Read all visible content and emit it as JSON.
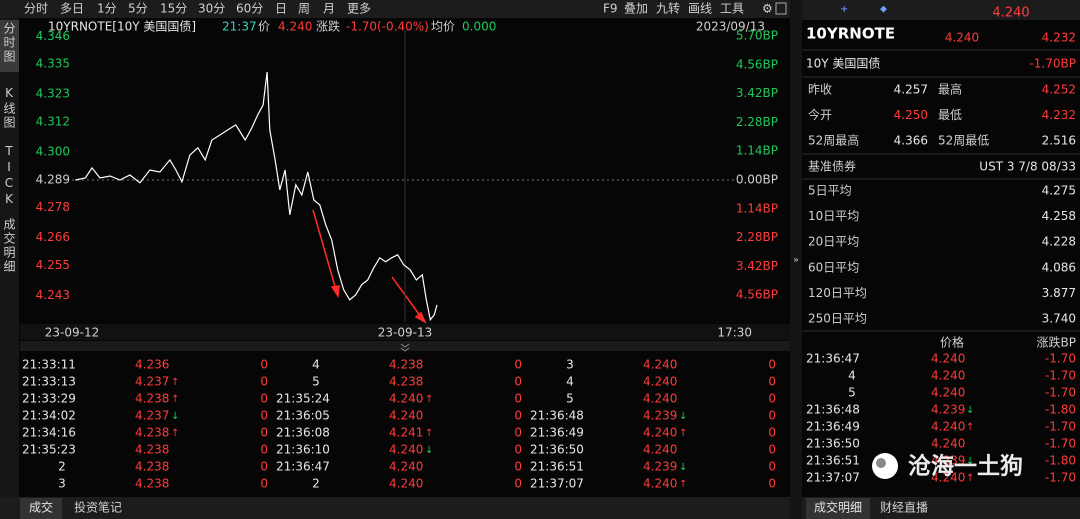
{
  "toolbar": {
    "tabs": [
      "分时",
      "多日",
      "1分",
      "5分",
      "15分",
      "30分",
      "60分",
      "日",
      "周",
      "月",
      "更多"
    ],
    "tools": [
      "F9",
      "叠加",
      "九转",
      "画线",
      "工具"
    ]
  },
  "side_tabs": [
    "分时图",
    "K线图",
    "TICK",
    "成交明细"
  ],
  "chart_header": {
    "symbol": "10YRNOTE[10Y 美国国债]",
    "time": "21:37",
    "price_label": "价",
    "price": "4.240",
    "change_label": "涨跌",
    "change": "-1.70(-0.40%)",
    "avg_label": "均价",
    "avg": "0.000",
    "date": "2023/09/13"
  },
  "chart_data": {
    "type": "line",
    "color": "#ffffff",
    "x": [
      0.5,
      2.0,
      3.0,
      4.2,
      5.7,
      7.2,
      8.7,
      10.2,
      11.7,
      13.2,
      14.7,
      15.6,
      16.5,
      17.7,
      18.9,
      20.0,
      21.0,
      22.2,
      23.4,
      24.6,
      26.0,
      27.0,
      27.9,
      28.7,
      29.3,
      29.7,
      30.5,
      31.2,
      32.0,
      32.7,
      33.6,
      34.5,
      35.4,
      36.3,
      37.2,
      38.1,
      39.0,
      39.9,
      40.8,
      41.7,
      42.6,
      43.5,
      44.4,
      45.3,
      46.2,
      47.1,
      48.0,
      48.9,
      49.8,
      50.8,
      51.7,
      52.6,
      53.2,
      53.8,
      54.4,
      54.8
    ],
    "values": [
      4.2889,
      4.2897,
      4.2937,
      4.2897,
      4.2905,
      4.2889,
      4.2909,
      4.2878,
      4.2929,
      4.2921,
      4.2969,
      4.2929,
      4.2882,
      4.2989,
      4.3017,
      4.2969,
      4.3048,
      4.3068,
      4.3088,
      4.3108,
      4.3048,
      4.3096,
      4.3148,
      4.3187,
      4.3318,
      4.3088,
      4.2969,
      4.285,
      4.2929,
      4.2751,
      4.287,
      4.283,
      4.2921,
      4.281,
      4.279,
      4.2711,
      4.2651,
      4.2532,
      4.2453,
      4.2413,
      4.2433,
      4.2473,
      4.2492,
      4.254,
      4.258,
      4.2564,
      4.258,
      4.2592,
      4.2552,
      4.2532,
      4.2492,
      4.2512,
      4.2413,
      4.2334,
      4.2354,
      4.2393
    ],
    "xlim": [
      0,
      100
    ],
    "xticks": [
      {
        "value": 0,
        "label": "23-09-12"
      },
      {
        "value": 50,
        "label": "23-09-13"
      },
      {
        "value": 100,
        "label": "17:30"
      }
    ],
    "ylim": [
      4.2325,
      4.3485
    ],
    "yticks": [
      {
        "value": 4.346,
        "label": "4.346"
      },
      {
        "value": 4.335,
        "label": "4.335"
      },
      {
        "value": 4.323,
        "label": "4.323"
      },
      {
        "value": 4.312,
        "label": "4.312"
      },
      {
        "value": 4.3,
        "label": "4.300"
      },
      {
        "value": 4.289,
        "label": "4.289"
      },
      {
        "value": 4.278,
        "label": "4.278"
      },
      {
        "value": 4.266,
        "label": "4.266"
      },
      {
        "value": 4.255,
        "label": "4.255"
      },
      {
        "value": 4.243,
        "label": "4.243"
      }
    ],
    "y2lim": [
      -5.62,
      5.94
    ],
    "y2ticks": [
      {
        "value": 5.7,
        "label": "5.70BP"
      },
      {
        "value": 4.56,
        "label": "4.56BP"
      },
      {
        "value": 3.42,
        "label": "3.42BP"
      },
      {
        "value": 2.28,
        "label": "2.28BP"
      },
      {
        "value": 1.14,
        "label": "1.14BP"
      },
      {
        "value": 0,
        "label": "0.00BP"
      },
      {
        "value": -1.14,
        "label": "1.14BP"
      },
      {
        "value": -2.28,
        "label": "2.28BP"
      },
      {
        "value": -3.42,
        "label": "3.42BP"
      },
      {
        "value": -4.56,
        "label": "4.56BP"
      }
    ]
  },
  "trades": {
    "flag_colors": {
      "↑": "#ff3b3b",
      "↓": "#1ec85a"
    },
    "groups": [
      [
        {
          "time": "21:33:11",
          "price": "4.236",
          "vol": "0"
        },
        {
          "time": "21:33:13",
          "price": "4.237",
          "flag": "↑",
          "vol": "0"
        },
        {
          "time": "21:33:29",
          "price": "4.238",
          "flag": "↑",
          "vol": "0"
        },
        {
          "time": "21:34:02",
          "price": "4.237",
          "flag": "↓",
          "vol": "0"
        },
        {
          "time": "21:34:16",
          "price": "4.238",
          "flag": "↑",
          "vol": "0"
        },
        {
          "time": "21:35:23",
          "price": "4.238",
          "vol": "0"
        },
        {
          "time": "2",
          "price": "4.238",
          "vol": "0"
        },
        {
          "time": "3",
          "price": "4.238",
          "vol": "0"
        }
      ],
      [
        {
          "time": "4",
          "price": "4.238",
          "vol": "0"
        },
        {
          "time": "5",
          "price": "4.238",
          "vol": "0"
        },
        {
          "time": "21:35:24",
          "price": "4.240",
          "flag": "↑",
          "vol": "0"
        },
        {
          "time": "21:36:05",
          "price": "4.240",
          "vol": "0"
        },
        {
          "time": "21:36:08",
          "price": "4.241",
          "flag": "↑",
          "vol": "0"
        },
        {
          "time": "21:36:10",
          "price": "4.240",
          "flag": "↓",
          "vol": "0"
        },
        {
          "time": "21:36:47",
          "price": "4.240",
          "vol": "0"
        },
        {
          "time": "2",
          "price": "4.240",
          "vol": "0"
        }
      ],
      [
        {
          "time": "3",
          "price": "4.240",
          "vol": "0"
        },
        {
          "time": "4",
          "price": "4.240",
          "vol": "0"
        },
        {
          "time": "5",
          "price": "4.240",
          "vol": "0"
        },
        {
          "time": "21:36:48",
          "price": "4.239",
          "flag": "↓",
          "vol": "0"
        },
        {
          "time": "21:36:49",
          "price": "4.240",
          "flag": "↑",
          "vol": "0"
        },
        {
          "time": "21:36:50",
          "price": "4.240",
          "vol": "0"
        },
        {
          "time": "21:36:51",
          "price": "4.239",
          "flag": "↓",
          "vol": "0"
        },
        {
          "time": "21:37:07",
          "price": "4.240",
          "flag": "↑",
          "vol": "0"
        }
      ]
    ]
  },
  "bottom_tabs": [
    "成交",
    "投资笔记"
  ],
  "panel": {
    "last": "4.240",
    "code": "10YRNOTE",
    "bid": "4.240",
    "ask": "4.232",
    "name": "10Y 美国国债",
    "change": "-1.70BP",
    "quote": [
      [
        {
          "label": "昨收",
          "value": "4.257",
          "color": "#e6e6e6"
        },
        {
          "label": "最高",
          "value": "4.252",
          "color": "#ff3b3b"
        }
      ],
      [
        {
          "label": "今开",
          "value": "4.250",
          "color": "#ff3b3b"
        },
        {
          "label": "最低",
          "value": "4.232",
          "color": "#ff3b3b"
        }
      ],
      [
        {
          "label": "52周最高",
          "value": "4.366",
          "color": "#e6e6e6"
        },
        {
          "label": "52周最低",
          "value": "2.516",
          "color": "#e6e6e6"
        }
      ]
    ],
    "benchmark": {
      "label": "基准债券",
      "value": "UST 3 7/8 08/33"
    },
    "averages": [
      {
        "label": "5日平均",
        "value": "4.275"
      },
      {
        "label": "10日平均",
        "value": "4.258"
      },
      {
        "label": "20日平均",
        "value": "4.228"
      },
      {
        "label": "60日平均",
        "value": "4.086"
      },
      {
        "label": "120日平均",
        "value": "3.877"
      },
      {
        "label": "250日平均",
        "value": "3.740"
      }
    ],
    "detail_headers": [
      "价格",
      "涨跌BP"
    ],
    "detail": [
      {
        "time": "21:36:47",
        "price": "4.240",
        "change": "-1.70"
      },
      {
        "time": "4",
        "price": "4.240",
        "change": "-1.70"
      },
      {
        "time": "5",
        "price": "4.240",
        "change": "-1.70"
      },
      {
        "time": "21:36:48",
        "price": "4.239",
        "flag": "↓",
        "change": "-1.80"
      },
      {
        "time": "21:36:49",
        "price": "4.240",
        "flag": "↑",
        "change": "-1.70"
      },
      {
        "time": "21:36:50",
        "price": "4.240",
        "change": "-1.70"
      },
      {
        "time": "21:36:51",
        "price": "4.239",
        "flag": "↓",
        "change": "-1.80"
      },
      {
        "time": "21:37:07",
        "price": "4.240",
        "flag": "↑",
        "change": "-1.70"
      }
    ],
    "tabs": [
      "成交明细",
      "财经直播"
    ]
  },
  "watermark": "沧海一土狗"
}
